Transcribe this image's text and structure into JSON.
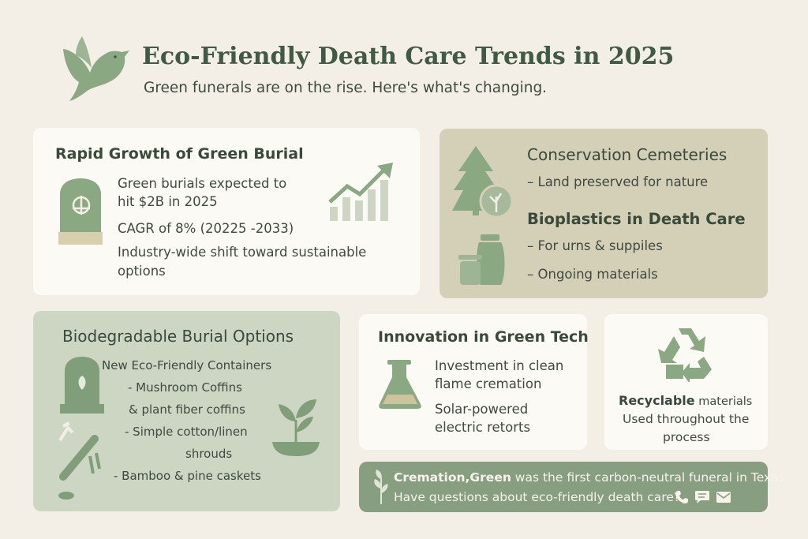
{
  "colors": {
    "background": "#f3efe6",
    "accent_green": "#8aa882",
    "dark_green": "#3f5a45",
    "card_tan": "#d4cfb7",
    "card_green": "#cdd6c2",
    "footer_green": "#889e80"
  },
  "header": {
    "title": "Eco-Friendly Death Care Trends in 2025",
    "subtitle": "Green funerals are on the rise. Here's what's changing.",
    "icon": "dove-icon"
  },
  "growth": {
    "heading": "Rapid Growth of Green Burial",
    "line1": "Green burials expected to",
    "line2": "hit $2B in 2025",
    "cagr": "CAGR of 8% (20225 -2033)",
    "shift1": "Industry-wide shift toward sustainable",
    "shift2": "options",
    "icons": [
      "headstone-icon",
      "growth-chart-icon"
    ]
  },
  "conservation": {
    "heading": "Conservation Cemeteries",
    "item": "– Land preserved for nature",
    "bio_heading": "Bioplastics in Death Care",
    "bio_item1": "– For urns & suppiles",
    "bio_item2": "– Ongoing materials",
    "icons": [
      "tree-icon",
      "urn-icon"
    ]
  },
  "biodegradable": {
    "heading": "Biodegradable Burial Options",
    "items": [
      "New Eco-Friendly Containers",
      "- Mushroom Coffins",
      "& plant fiber coffins",
      "- Simple cotton/linen",
      "shrouds",
      "- Bamboo & pine caskets"
    ],
    "icons": [
      "grave-leaf-icon",
      "bamboo-icon",
      "plant-bowl-icon"
    ]
  },
  "innovation": {
    "heading": "Innovation in Green Tech",
    "line1": "Investment in clean",
    "line2": "flame cremation",
    "line3": "Solar-powered",
    "line4": "electric retorts",
    "icon": "flask-icon"
  },
  "recycle": {
    "bold": "Recyclable",
    "rest": " materials",
    "line2": "Used throughout the",
    "line3": "process",
    "icon": "recycle-icon"
  },
  "footer": {
    "bold": "Cremation,Green",
    "line1_rest": " was the first carbon-neutral funeral in Texas,",
    "line2": "Have questions about eco-friendly death care?",
    "icons": [
      "phone-icon",
      "chat-icon",
      "mail-icon"
    ]
  }
}
